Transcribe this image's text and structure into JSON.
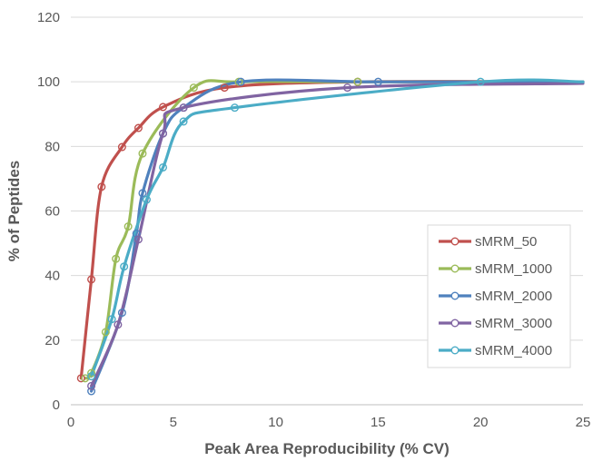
{
  "chart_data": {
    "type": "line",
    "xlabel": "Peak Area Reproducibility (% CV)",
    "ylabel": "% of Peptides",
    "xlim": [
      0,
      25
    ],
    "ylim": [
      0,
      120
    ],
    "x_ticks": [
      0,
      5,
      10,
      15,
      20,
      25
    ],
    "y_ticks": [
      0,
      20,
      40,
      60,
      80,
      100,
      120
    ],
    "grid": "horizontal",
    "legend_position": "right",
    "series": [
      {
        "name": "sMRM_50",
        "color": "#C0504D",
        "points": [
          [
            0.5,
            8.2
          ],
          [
            1.0,
            38.8
          ],
          [
            1.5,
            67.5
          ],
          [
            2.5,
            79.8
          ],
          [
            3.3,
            85.7
          ],
          [
            4.5,
            92.2
          ],
          [
            7.5,
            98.2
          ],
          [
            14.0,
            100
          ],
          [
            25,
            100
          ]
        ]
      },
      {
        "name": "sMRM_1000",
        "color": "#9BBB59",
        "points": [
          [
            0.7,
            8.2
          ],
          [
            1.0,
            9.8
          ],
          [
            1.7,
            22.5
          ],
          [
            2.2,
            45.2
          ],
          [
            2.8,
            55.2
          ],
          [
            3.5,
            77.8
          ],
          [
            6.0,
            98.2
          ],
          [
            8.2,
            100
          ],
          [
            14.0,
            100
          ],
          [
            25,
            100
          ]
        ]
      },
      {
        "name": "sMRM_2000",
        "color": "#4F81BD",
        "points": [
          [
            1.0,
            4.2
          ],
          [
            2.5,
            28.5
          ],
          [
            3.2,
            53.0
          ],
          [
            3.5,
            65.5
          ],
          [
            4.5,
            84.0
          ],
          [
            5.5,
            92.0
          ],
          [
            8.3,
            100
          ],
          [
            15.0,
            100
          ],
          [
            25,
            100
          ]
        ]
      },
      {
        "name": "sMRM_3000",
        "color": "#8064A2",
        "points": [
          [
            1.0,
            5.8
          ],
          [
            2.3,
            24.8
          ],
          [
            3.3,
            51.2
          ],
          [
            4.5,
            84.0
          ],
          [
            5.5,
            92.0
          ],
          [
            13.5,
            98.2
          ],
          [
            25,
            99.5
          ]
        ]
      },
      {
        "name": "sMRM_4000",
        "color": "#4BACC6",
        "points": [
          [
            1.0,
            8.8
          ],
          [
            2.0,
            26.5
          ],
          [
            2.6,
            42.8
          ],
          [
            3.7,
            63.5
          ],
          [
            4.5,
            73.5
          ],
          [
            5.5,
            87.7
          ],
          [
            8.0,
            92.0
          ],
          [
            20.0,
            100
          ],
          [
            25,
            100
          ]
        ]
      }
    ]
  }
}
